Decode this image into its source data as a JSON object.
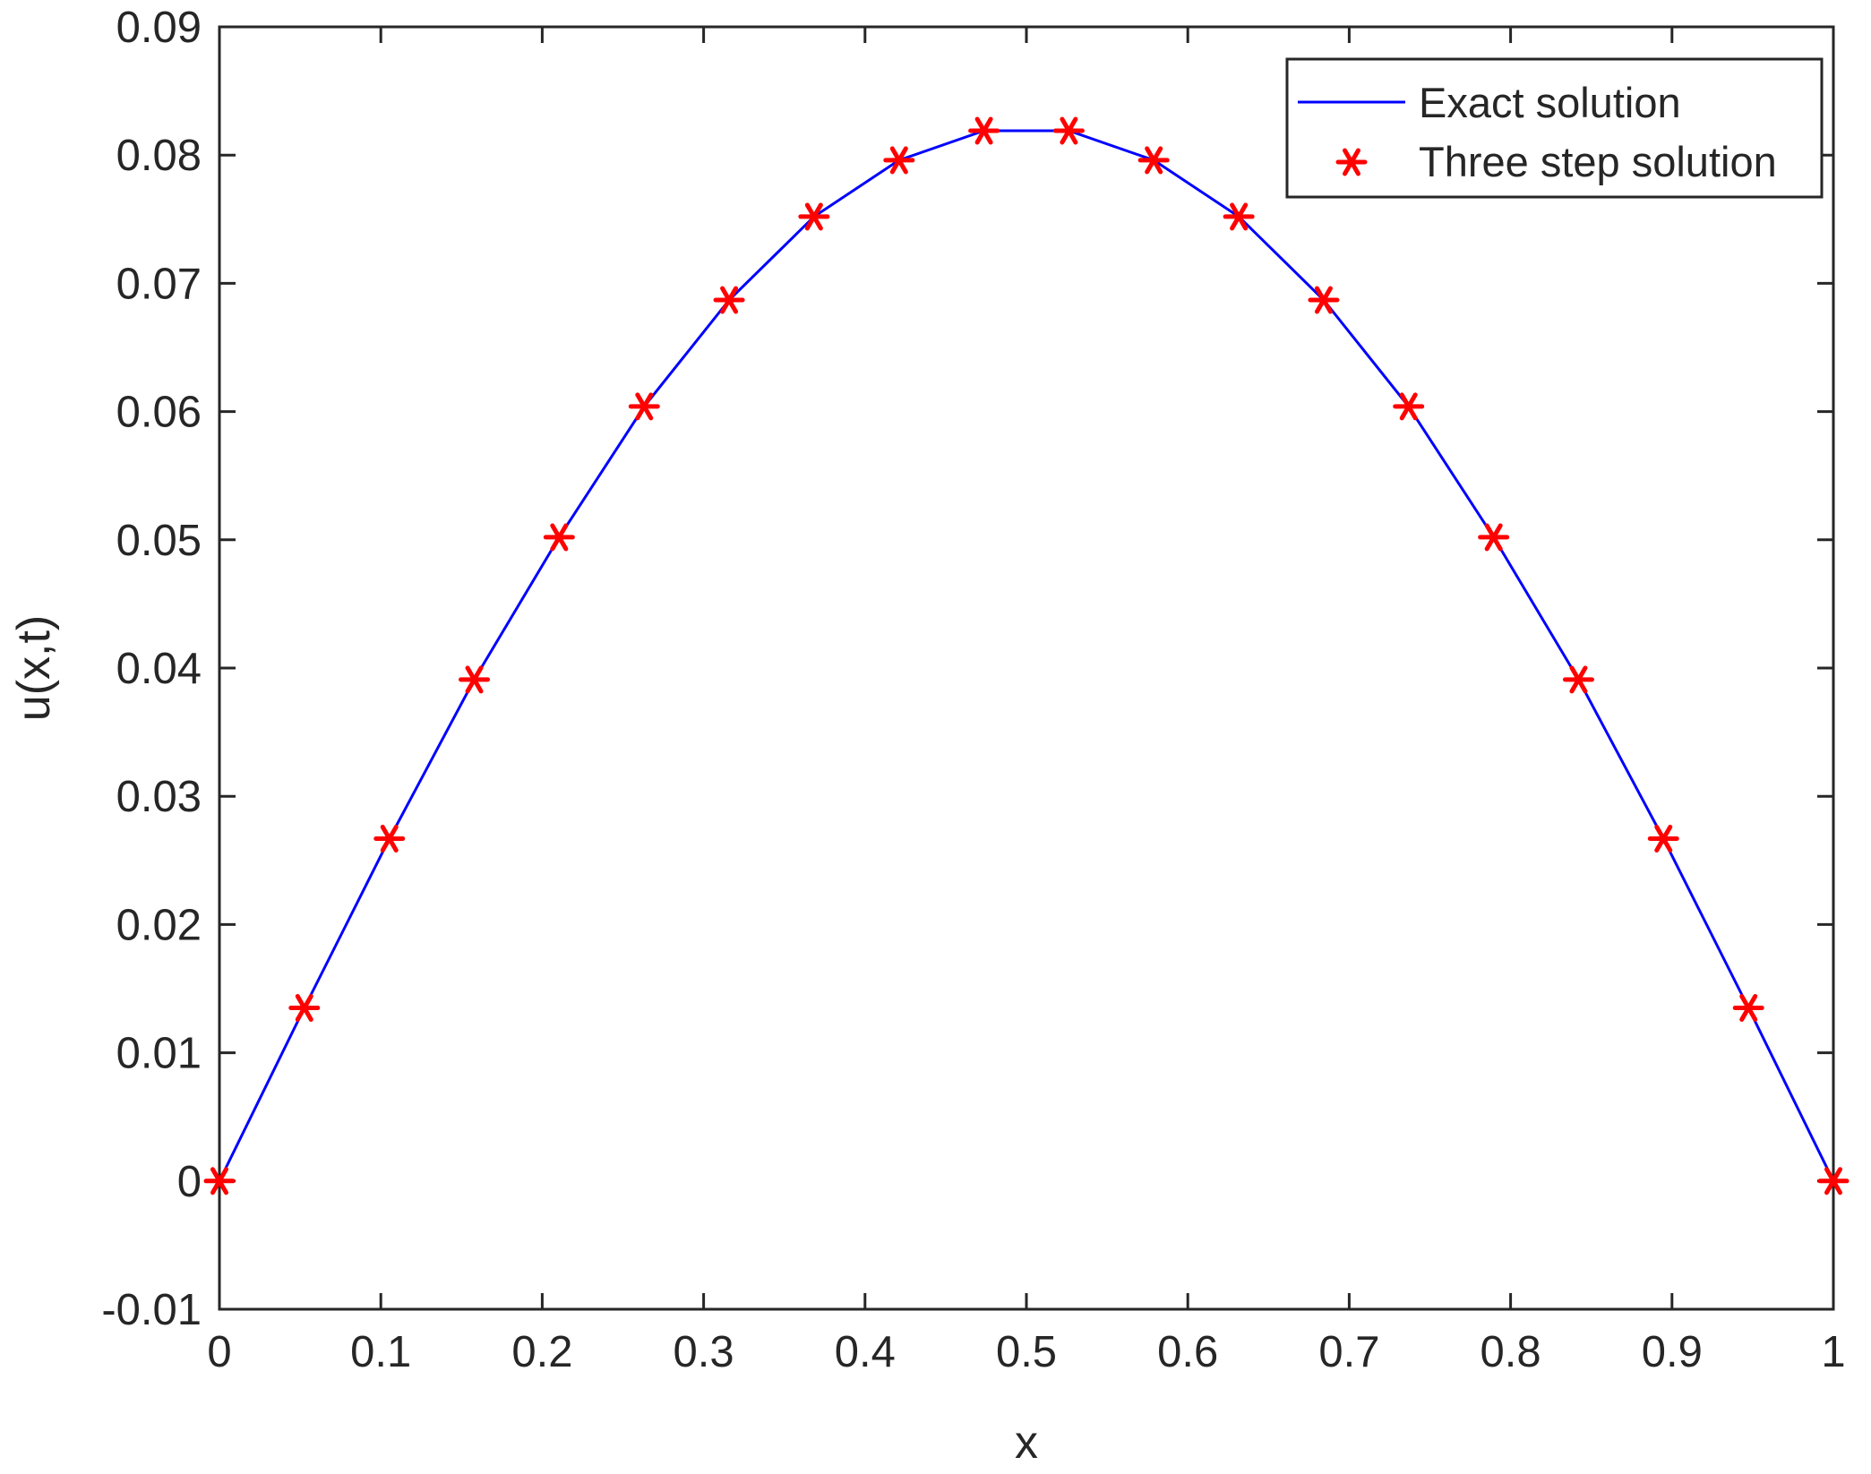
{
  "chart_data": {
    "type": "line",
    "xlabel": "x",
    "ylabel": "u(x,t)",
    "xlim": [
      0,
      1
    ],
    "ylim": [
      -0.01,
      0.09
    ],
    "x_ticks": [
      "0",
      "0.1",
      "0.2",
      "0.3",
      "0.4",
      "0.5",
      "0.6",
      "0.7",
      "0.8",
      "0.9",
      "1"
    ],
    "y_ticks": [
      "-0.01",
      "0",
      "0.01",
      "0.02",
      "0.03",
      "0.04",
      "0.05",
      "0.06",
      "0.07",
      "0.08",
      "0.09"
    ],
    "grid": false,
    "box": true,
    "legend_position": "top-right",
    "series": [
      {
        "name": "Exact solution",
        "style": "line",
        "color": "#0000ff",
        "x": [
          0,
          0.0526,
          0.1053,
          0.1579,
          0.2105,
          0.2632,
          0.3158,
          0.3684,
          0.4211,
          0.4737,
          0.5263,
          0.5789,
          0.6316,
          0.6842,
          0.7368,
          0.7895,
          0.8421,
          0.8947,
          0.9474,
          1
        ],
        "y": [
          0,
          0.0135,
          0.0267,
          0.0391,
          0.0502,
          0.0604,
          0.0687,
          0.0752,
          0.0796,
          0.0819,
          0.0819,
          0.0796,
          0.0752,
          0.0687,
          0.0604,
          0.0502,
          0.0391,
          0.0267,
          0.0135,
          0
        ]
      },
      {
        "name": "Three step solution",
        "style": "marker-asterisk",
        "color": "#ff0000",
        "x": [
          0,
          0.0526,
          0.1053,
          0.1579,
          0.2105,
          0.2632,
          0.3158,
          0.3684,
          0.4211,
          0.4737,
          0.5263,
          0.5789,
          0.6316,
          0.6842,
          0.7368,
          0.7895,
          0.8421,
          0.8947,
          0.9474,
          1
        ],
        "y": [
          0,
          0.0135,
          0.0267,
          0.0391,
          0.0502,
          0.0604,
          0.0687,
          0.0752,
          0.0796,
          0.0819,
          0.0819,
          0.0796,
          0.0752,
          0.0687,
          0.0604,
          0.0502,
          0.0391,
          0.0267,
          0.0135,
          0
        ]
      }
    ]
  }
}
